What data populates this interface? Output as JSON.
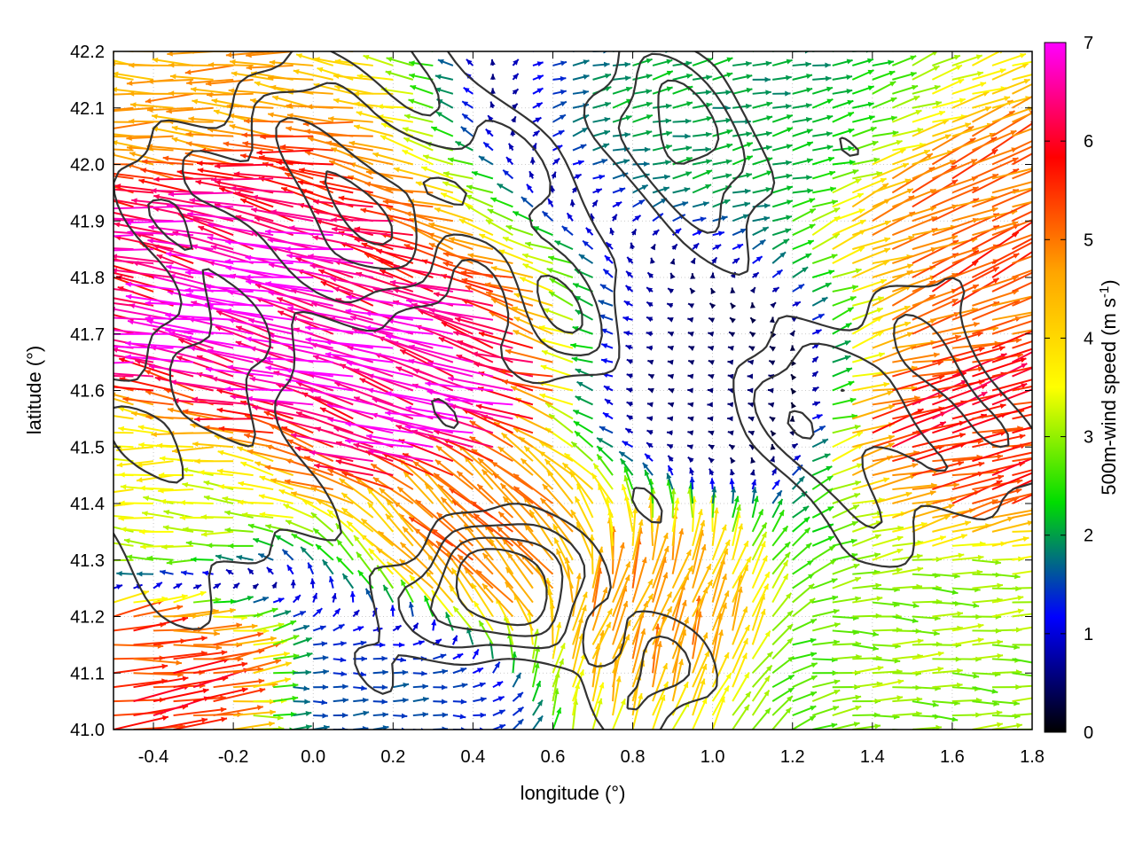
{
  "chart_data": {
    "type": "vector-field",
    "title": "",
    "xlabel": "longitude (°)",
    "ylabel": "latitude (°)",
    "colorbar_label_main": "500m-wind speed (m s",
    "colorbar_label_sup": "-1",
    "colorbar_label_end": ")",
    "xlim": [
      -0.5,
      1.8
    ],
    "ylim": [
      41.0,
      42.2
    ],
    "x_ticks": [
      -0.4,
      -0.2,
      0.0,
      0.2,
      0.4,
      0.6,
      0.8,
      1.0,
      1.2,
      1.4,
      1.6,
      1.8
    ],
    "x_tick_labels": [
      "-0.4",
      "-0.2",
      "0.0",
      "0.2",
      "0.4",
      "0.6",
      "0.8",
      "1.0",
      "1.2",
      "1.4",
      "1.6",
      "1.8"
    ],
    "y_ticks": [
      41.0,
      41.1,
      41.2,
      41.3,
      41.4,
      41.5,
      41.6,
      41.7,
      41.8,
      41.9,
      42.0,
      42.1,
      42.2
    ],
    "y_tick_labels": [
      "41.0",
      "41.1",
      "41.2",
      "41.3",
      "41.4",
      "41.5",
      "41.6",
      "41.7",
      "41.8",
      "41.9",
      "42.0",
      "42.1",
      "42.2"
    ],
    "colorbar_range": [
      0,
      7
    ],
    "colorbar_ticks": [
      0,
      1,
      2,
      3,
      4,
      5,
      6,
      7
    ],
    "colorbar_tick_labels": [
      "0",
      "1",
      "2",
      "3",
      "4",
      "5",
      "6",
      "7"
    ],
    "colormap": [
      "#000000",
      "#0000ff",
      "#00dd00",
      "#ffff00",
      "#ffa500",
      "#ff0000",
      "#ff00ff"
    ],
    "grid": "dotted",
    "contour_color": "#333333",
    "vectors": [
      {
        "lon": -0.45,
        "lat": 42.15,
        "u": -4.5,
        "v": 0.2
      },
      {
        "lon": -0.45,
        "lat": 41.8,
        "u": -6.2,
        "v": 0.9
      },
      {
        "lon": -0.45,
        "lat": 41.4,
        "u": -3.5,
        "v": 0.1
      },
      {
        "lon": -0.45,
        "lat": 41.1,
        "u": 5.5,
        "v": 0.6
      },
      {
        "lon": -0.2,
        "lat": 41.75,
        "u": -6.8,
        "v": 1.4
      },
      {
        "lon": 0.3,
        "lat": 41.6,
        "u": -6.5,
        "v": 1.8
      },
      {
        "lon": 0.5,
        "lat": 41.3,
        "u": -3.5,
        "v": 3.5
      },
      {
        "lon": 0.8,
        "lat": 41.2,
        "u": 1.5,
        "v": 4.5
      },
      {
        "lon": 1.0,
        "lat": 41.6,
        "u": -0.5,
        "v": 0.1
      },
      {
        "lon": 1.6,
        "lat": 41.55,
        "u": 5.5,
        "v": 1.4
      },
      {
        "lon": 1.7,
        "lat": 41.85,
        "u": 4.8,
        "v": 2.0
      },
      {
        "lon": 1.5,
        "lat": 41.15,
        "u": 3.0,
        "v": 0.0
      },
      {
        "lon": 1.0,
        "lat": 42.1,
        "u": 2.0,
        "v": 0.4
      },
      {
        "lon": 0.2,
        "lat": 41.05,
        "u": 1.5,
        "v": 0.0
      }
    ]
  }
}
